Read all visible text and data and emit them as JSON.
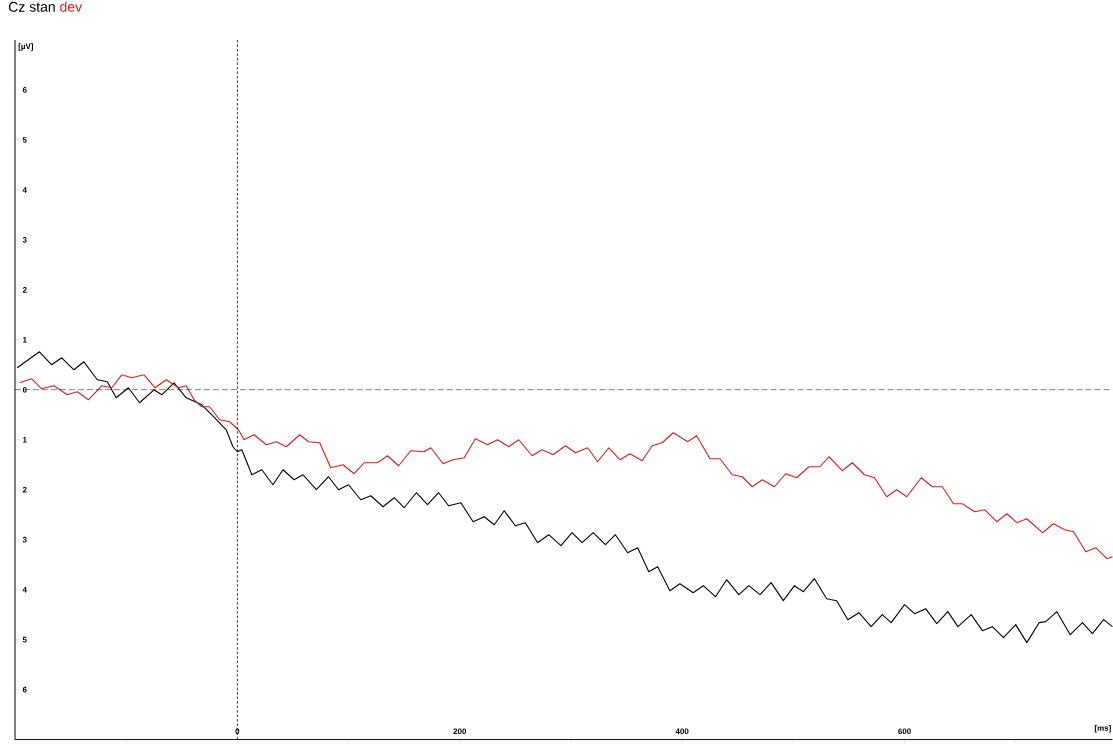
{
  "chart_data": {
    "type": "line",
    "title": "Cz",
    "xlabel": "[ms]",
    "ylabel": "[µV]",
    "xlim": [
      -200,
      787
    ],
    "ylim": [
      7,
      -7
    ],
    "xticks": [
      {
        "value": -100,
        "label": null
      },
      0,
      {
        "value": 100,
        "label": null
      },
      200,
      {
        "value": 300,
        "label": null
      },
      400,
      {
        "value": 500,
        "label": null
      },
      600,
      {
        "value": 700,
        "label": null
      }
    ],
    "yticks": [
      {
        "value": -6,
        "label": "6"
      },
      {
        "value": -5,
        "label": "5"
      },
      {
        "value": -4,
        "label": "4"
      },
      {
        "value": -3,
        "label": "3"
      },
      {
        "value": -2,
        "label": "2"
      },
      {
        "value": -1,
        "label": "1"
      },
      0,
      1,
      2,
      3,
      4,
      5,
      6
    ],
    "legend": "top left",
    "ref_lines": [
      {
        "axis": "y",
        "value": 0,
        "color": "#000000",
        "line_style": "dashed"
      },
      {
        "axis": "x",
        "value": 0,
        "color": "#000000",
        "line_style": "dotted"
      }
    ],
    "series": [
      {
        "name": "stan",
        "color": "#000000",
        "x": [
          -198,
          -178,
          -167,
          -158,
          -147,
          -138,
          -126,
          -117,
          -109,
          -98,
          -88,
          -75,
          -68,
          -57,
          -46,
          -32,
          -23,
          -10,
          -4,
          0,
          4,
          13,
          22,
          32,
          41,
          51,
          59,
          71,
          82,
          91,
          100,
          111,
          120,
          131,
          141,
          150,
          161,
          171,
          181,
          190,
          201,
          212,
          222,
          231,
          240,
          250,
          259,
          270,
          280,
          291,
          301,
          310,
          320,
          331,
          340,
          351,
          360,
          370,
          378,
          389,
          398,
          410,
          419,
          430,
          440,
          451,
          460,
          470,
          480,
          491,
          501,
          509,
          519,
          530,
          539,
          549,
          559,
          570,
          580,
          588,
          600,
          609,
          619,
          629,
          639,
          648,
          660,
          670,
          679,
          689,
          700,
          710,
          721,
          727,
          737,
          749,
          760,
          769,
          779,
          787
        ],
        "values": [
          -0.44,
          -0.76,
          -0.5,
          -0.64,
          -0.4,
          -0.56,
          -0.2,
          -0.16,
          0.16,
          -0.04,
          0.26,
          0,
          0.1,
          -0.14,
          0.16,
          0.3,
          0.5,
          0.8,
          1.14,
          1.24,
          1.2,
          1.7,
          1.6,
          1.9,
          1.6,
          1.8,
          1.7,
          2.0,
          1.74,
          2.0,
          1.9,
          2.2,
          2.12,
          2.34,
          2.16,
          2.36,
          2.06,
          2.3,
          2.06,
          2.32,
          2.26,
          2.64,
          2.54,
          2.7,
          2.42,
          2.72,
          2.66,
          3.06,
          2.9,
          3.12,
          2.86,
          3.06,
          2.86,
          3.1,
          2.9,
          3.26,
          3.16,
          3.64,
          3.54,
          4.02,
          3.88,
          4.06,
          3.92,
          4.14,
          3.8,
          4.1,
          3.92,
          4.1,
          3.86,
          4.22,
          3.92,
          4.04,
          3.78,
          4.18,
          4.22,
          4.6,
          4.46,
          4.74,
          4.5,
          4.66,
          4.3,
          4.48,
          4.38,
          4.68,
          4.44,
          4.74,
          4.5,
          4.82,
          4.74,
          4.96,
          4.7,
          5.06,
          4.66,
          4.64,
          4.44,
          4.9,
          4.66,
          4.88,
          4.6,
          4.74
        ]
      },
      {
        "name": "dev",
        "color": "#d81e1e",
        "x": [
          -196,
          -185,
          -176,
          -165,
          -153,
          -144,
          -134,
          -122,
          -113,
          -104,
          -95,
          -84,
          -74,
          -64,
          -53,
          -46,
          -39,
          -32,
          -25,
          -16,
          -7,
          1,
          6,
          15,
          26,
          35,
          44,
          56,
          64,
          74,
          84,
          95,
          105,
          114,
          126,
          135,
          145,
          156,
          168,
          174,
          185,
          194,
          204,
          214,
          225,
          234,
          244,
          253,
          265,
          274,
          284,
          295,
          304,
          315,
          324,
          334,
          344,
          353,
          364,
          373,
          382,
          392,
          405,
          413,
          425,
          434,
          445,
          454,
          463,
          472,
          483,
          493,
          503,
          514,
          524,
          532,
          544,
          553,
          564,
          573,
          584,
          593,
          602,
          615,
          625,
          634,
          644,
          652,
          663,
          672,
          683,
          692,
          701,
          710,
          724,
          734,
          744,
          752,
          763,
          772,
          782,
          787
        ],
        "values": [
          -0.14,
          -0.22,
          -0.02,
          -0.08,
          0.1,
          0.04,
          0.2,
          -0.08,
          -0.04,
          -0.3,
          -0.24,
          -0.3,
          -0.04,
          -0.2,
          -0.04,
          -0.08,
          0.2,
          0.34,
          0.34,
          0.6,
          0.64,
          0.8,
          1.0,
          0.9,
          1.1,
          1.04,
          1.14,
          0.9,
          1.04,
          1.06,
          1.56,
          1.5,
          1.68,
          1.46,
          1.46,
          1.32,
          1.52,
          1.22,
          1.24,
          1.16,
          1.48,
          1.4,
          1.36,
          0.98,
          1.1,
          1.0,
          1.14,
          1.0,
          1.32,
          1.2,
          1.3,
          1.12,
          1.26,
          1.16,
          1.44,
          1.16,
          1.4,
          1.28,
          1.42,
          1.12,
          1.06,
          0.86,
          1.04,
          0.92,
          1.38,
          1.38,
          1.7,
          1.74,
          1.94,
          1.8,
          1.94,
          1.68,
          1.76,
          1.54,
          1.54,
          1.34,
          1.62,
          1.46,
          1.7,
          1.76,
          2.14,
          2.0,
          2.14,
          1.76,
          1.94,
          1.94,
          2.28,
          2.28,
          2.44,
          2.4,
          2.64,
          2.48,
          2.66,
          2.58,
          2.86,
          2.68,
          2.8,
          2.84,
          3.24,
          3.16,
          3.38,
          3.34
        ]
      }
    ]
  }
}
